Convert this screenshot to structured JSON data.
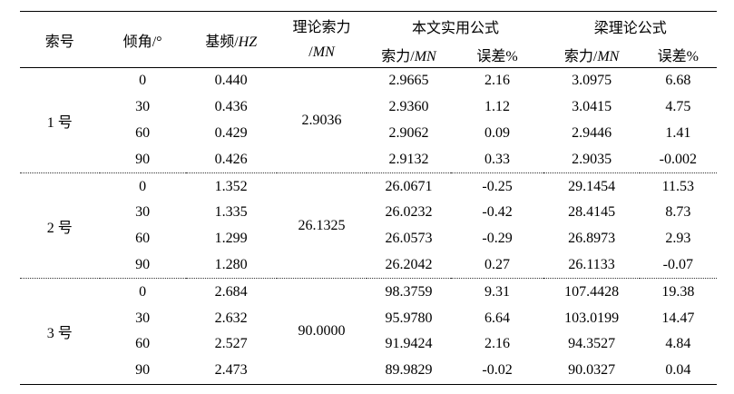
{
  "table": {
    "header": {
      "cable_no": "索号",
      "angle": "倾角/°",
      "freq_prefix": "基频/",
      "freq_unit": "HZ",
      "theory_line1": "理论索力",
      "theory_slash": "/",
      "theory_unit": "MN",
      "group_practical": "本文实用公式",
      "group_beam": "梁理论公式",
      "sub_force_prefix": "索力/",
      "sub_force_unit": "MN",
      "sub_error": "误差%"
    },
    "groups": [
      {
        "label": "1 号",
        "theory_force": "2.9036",
        "rows": [
          {
            "angle": "0",
            "freq": "0.440",
            "practical_force": "2.9665",
            "practical_error": "2.16",
            "beam_force": "3.0975",
            "beam_error": "6.68"
          },
          {
            "angle": "30",
            "freq": "0.436",
            "practical_force": "2.9360",
            "practical_error": "1.12",
            "beam_force": "3.0415",
            "beam_error": "4.75"
          },
          {
            "angle": "60",
            "freq": "0.429",
            "practical_force": "2.9062",
            "practical_error": "0.09",
            "beam_force": "2.9446",
            "beam_error": "1.41"
          },
          {
            "angle": "90",
            "freq": "0.426",
            "practical_force": "2.9132",
            "practical_error": "0.33",
            "beam_force": "2.9035",
            "beam_error": "-0.002"
          }
        ]
      },
      {
        "label": "2 号",
        "theory_force": "26.1325",
        "rows": [
          {
            "angle": "0",
            "freq": "1.352",
            "practical_force": "26.0671",
            "practical_error": "-0.25",
            "beam_force": "29.1454",
            "beam_error": "11.53"
          },
          {
            "angle": "30",
            "freq": "1.335",
            "practical_force": "26.0232",
            "practical_error": "-0.42",
            "beam_force": "28.4145",
            "beam_error": "8.73"
          },
          {
            "angle": "60",
            "freq": "1.299",
            "practical_force": "26.0573",
            "practical_error": "-0.29",
            "beam_force": "26.8973",
            "beam_error": "2.93"
          },
          {
            "angle": "90",
            "freq": "1.280",
            "practical_force": "26.2042",
            "practical_error": "0.27",
            "beam_force": "26.1133",
            "beam_error": "-0.07"
          }
        ]
      },
      {
        "label": "3 号",
        "theory_force": "90.0000",
        "rows": [
          {
            "angle": "0",
            "freq": "2.684",
            "practical_force": "98.3759",
            "practical_error": "9.31",
            "beam_force": "107.4428",
            "beam_error": "19.38"
          },
          {
            "angle": "30",
            "freq": "2.632",
            "practical_force": "95.9780",
            "practical_error": "6.64",
            "beam_force": "103.0199",
            "beam_error": "14.47"
          },
          {
            "angle": "60",
            "freq": "2.527",
            "practical_force": "91.9424",
            "practical_error": "2.16",
            "beam_force": "94.3527",
            "beam_error": "4.84"
          },
          {
            "angle": "90",
            "freq": "2.473",
            "practical_force": "89.9829",
            "practical_error": "-0.02",
            "beam_force": "90.0327",
            "beam_error": "0.04"
          }
        ]
      }
    ]
  }
}
